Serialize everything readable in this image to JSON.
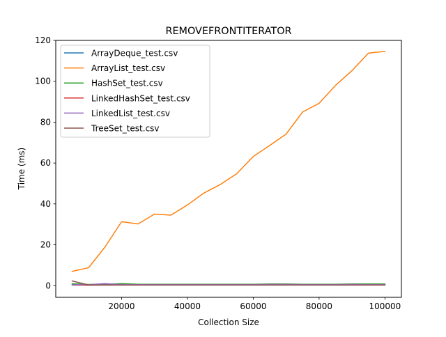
{
  "chart_data": {
    "type": "line",
    "title": "REMOVEFRONTITERATOR",
    "xlabel": "Collection Size",
    "ylabel": "Time (ms)",
    "xlim": [
      0,
      105000
    ],
    "ylim": [
      -5.7,
      120
    ],
    "xticks": [
      20000,
      40000,
      60000,
      80000,
      100000
    ],
    "yticks": [
      0,
      20,
      40,
      60,
      80,
      100,
      120
    ],
    "grid": false,
    "legend_position": "top-left",
    "x": [
      5000,
      10000,
      15000,
      20000,
      25000,
      30000,
      35000,
      40000,
      45000,
      50000,
      55000,
      60000,
      65000,
      70000,
      75000,
      80000,
      85000,
      90000,
      95000,
      100000
    ],
    "series": [
      {
        "name": "ArrayDeque_test.csv",
        "color": "#1f77b4",
        "values": [
          0.5,
          0.4,
          0.4,
          0.4,
          0.4,
          0.4,
          0.4,
          0.4,
          0.4,
          0.4,
          0.4,
          0.4,
          0.4,
          0.4,
          0.4,
          0.4,
          0.4,
          0.4,
          0.4,
          0.4
        ]
      },
      {
        "name": "ArrayList_test.csv",
        "color": "#ff7f0e",
        "values": [
          7.0,
          8.8,
          19.0,
          31.3,
          30.2,
          35.0,
          34.5,
          39.5,
          45.3,
          49.5,
          54.8,
          63.2,
          68.6,
          74.2,
          85.0,
          89.2,
          98.0,
          105.2,
          113.8,
          114.6
        ]
      },
      {
        "name": "HashSet_test.csv",
        "color": "#2ca02c",
        "values": [
          0.9,
          0.6,
          0.6,
          1.0,
          0.7,
          0.7,
          0.7,
          0.7,
          0.7,
          0.7,
          0.7,
          0.7,
          0.8,
          0.8,
          0.7,
          0.7,
          0.7,
          0.8,
          0.8,
          0.8
        ]
      },
      {
        "name": "LinkedHashSet_test.csv",
        "color": "#d62728",
        "values": [
          0.3,
          0.2,
          0.3,
          0.3,
          0.3,
          0.3,
          0.3,
          0.3,
          0.3,
          0.3,
          0.3,
          0.3,
          0.3,
          0.3,
          0.3,
          0.3,
          0.3,
          0.3,
          0.3,
          0.3
        ]
      },
      {
        "name": "LinkedList_test.csv",
        "color": "#9467bd",
        "values": [
          0.4,
          0.5,
          1.0,
          0.5,
          0.5,
          0.5,
          0.5,
          0.5,
          0.5,
          0.5,
          0.5,
          0.5,
          0.6,
          0.6,
          0.5,
          0.5,
          0.5,
          0.6,
          0.5,
          0.5
        ]
      },
      {
        "name": "TreeSet_test.csv",
        "color": "#8c564b",
        "values": [
          2.3,
          0.3,
          0.3,
          0.3,
          0.3,
          0.3,
          0.3,
          0.3,
          0.3,
          0.3,
          0.3,
          0.3,
          0.3,
          0.3,
          0.3,
          0.3,
          0.3,
          0.3,
          0.3,
          0.3
        ]
      }
    ]
  }
}
